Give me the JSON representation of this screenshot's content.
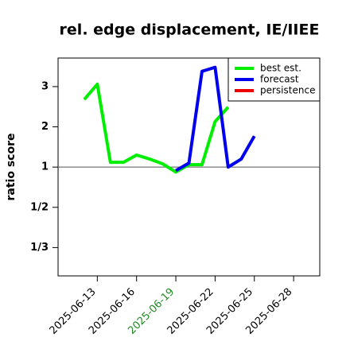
{
  "chart_data": {
    "type": "line",
    "title": "rel. edge displacement, IE/IIEE",
    "y_label": "ratio score",
    "yscale": "ratio",
    "x": [
      "2025-06-12",
      "2025-06-13",
      "2025-06-14",
      "2025-06-15",
      "2025-06-16",
      "2025-06-17",
      "2025-06-18",
      "2025-06-19",
      "2025-06-20",
      "2025-06-21",
      "2025-06-22",
      "2025-06-23",
      "2025-06-24",
      "2025-06-25"
    ],
    "series": [
      {
        "name": "best est.",
        "color": "#00ee00",
        "values": [
          2.68,
          3.06,
          1.12,
          1.12,
          1.3,
          1.2,
          1.08,
          0.89,
          1.06,
          1.06,
          2.13,
          2.49,
          null,
          null
        ]
      },
      {
        "name": "forecast",
        "color": "#0000ee",
        "values": [
          null,
          null,
          null,
          null,
          null,
          null,
          null,
          0.92,
          1.1,
          3.38,
          3.48,
          1.0,
          1.2,
          1.77
        ]
      },
      {
        "name": "persistence",
        "color": "#ee0000",
        "values": [
          null,
          null,
          null,
          null,
          null,
          null,
          null,
          null,
          null,
          null,
          null,
          null,
          null,
          null
        ]
      }
    ],
    "xlim": [
      "2025-06-10",
      "2025-06-30"
    ],
    "xticks": [
      "2025-06-13",
      "2025-06-16",
      "2025-06-19",
      "2025-06-22",
      "2025-06-25",
      "2025-06-28"
    ],
    "highlight_xtick": "2025-06-19",
    "highlight_color": "#228b22",
    "ylim": [
      0.27,
      3.71
    ],
    "yticks": [
      3,
      2,
      1,
      {
        "value": 0.5,
        "label": "1/2"
      },
      {
        "value": 0.3333,
        "label": "1/3"
      }
    ],
    "reference_line": 1,
    "legend": "top-right"
  }
}
